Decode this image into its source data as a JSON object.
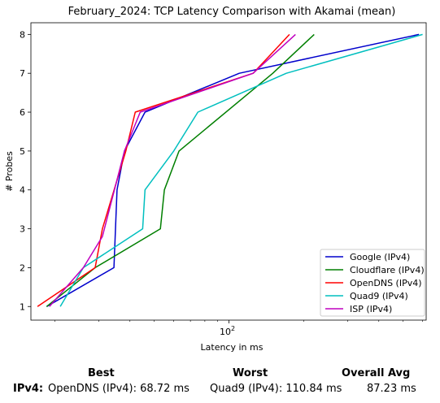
{
  "chart_data": {
    "type": "line",
    "title": "February_2024: TCP Latency Comparison with Akamai (mean)",
    "xlabel": "Latency in ms",
    "ylabel": "# Probes",
    "xscale": "log",
    "xlim": [
      16,
      620
    ],
    "ylim": [
      0.65,
      8.3
    ],
    "xticks": [
      {
        "value": 100,
        "label": "10",
        "exp": "2"
      }
    ],
    "yticks": [
      1,
      2,
      3,
      4,
      5,
      6,
      7,
      8
    ],
    "grid": false,
    "legend_position": "lower right",
    "series": [
      {
        "name": "Google (IPv4)",
        "color": "#0000cc",
        "points": [
          [
            18.5,
            1
          ],
          [
            34.5,
            2
          ],
          [
            35.5,
            4
          ],
          [
            38,
            5
          ],
          [
            46,
            6
          ],
          [
            110,
            7
          ],
          [
            580,
            8
          ]
        ]
      },
      {
        "name": "Cloudflare (IPv4)",
        "color": "#007f00",
        "points": [
          [
            18.5,
            1
          ],
          [
            29,
            2
          ],
          [
            53,
            3
          ],
          [
            55,
            4
          ],
          [
            63,
            5
          ],
          [
            150,
            7
          ],
          [
            220,
            8
          ]
        ]
      },
      {
        "name": "OpenDNS (IPv4)",
        "color": "#ff0000",
        "points": [
          [
            17,
            1
          ],
          [
            29,
            2
          ],
          [
            31,
            3
          ],
          [
            38.5,
            5
          ],
          [
            42,
            6
          ],
          [
            125,
            7
          ],
          [
            175,
            8
          ]
        ]
      },
      {
        "name": "Quad9 (IPv4)",
        "color": "#00bfbf",
        "points": [
          [
            21,
            1
          ],
          [
            26,
            2
          ],
          [
            45,
            3
          ],
          [
            46,
            4
          ],
          [
            60,
            5
          ],
          [
            75,
            6
          ],
          [
            170,
            7
          ],
          [
            600,
            8
          ]
        ]
      },
      {
        "name": "ISP (IPv4)",
        "color": "#bf00bf",
        "points": [
          [
            19,
            1
          ],
          [
            26,
            2
          ],
          [
            31,
            2.8
          ],
          [
            38,
            5
          ],
          [
            44,
            6
          ],
          [
            125,
            7
          ],
          [
            185,
            8
          ]
        ]
      }
    ]
  },
  "summary": {
    "best_header": "Best",
    "worst_header": "Worst",
    "avg_header": "Overall Avg",
    "row_label": "IPv4:",
    "best_value": "OpenDNS (IPv4): 68.72 ms",
    "worst_value": "Quad9 (IPv4): 110.84 ms",
    "avg_value": "87.23 ms"
  }
}
